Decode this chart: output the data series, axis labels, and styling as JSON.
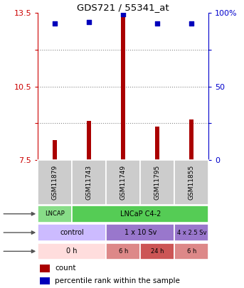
{
  "title": "GDS721 / 55341_at",
  "samples": [
    "GSM11879",
    "GSM11743",
    "GSM11749",
    "GSM11795",
    "GSM11855"
  ],
  "bar_values": [
    8.3,
    9.1,
    13.45,
    8.85,
    9.15
  ],
  "percentile_values": [
    93,
    94,
    99,
    93,
    93
  ],
  "ylim": [
    7.5,
    13.5
  ],
  "yticks_left": [
    7.5,
    9.0,
    10.5,
    12.0,
    13.5
  ],
  "ytick_labels_left": [
    "7.5",
    "",
    "10.5",
    "",
    "13.5"
  ],
  "ytick_labels_left_show": [
    true,
    false,
    true,
    false,
    true
  ],
  "yticks_right": [
    0,
    25,
    50,
    75,
    100
  ],
  "ytick_labels_right_show": [
    true,
    false,
    true,
    false,
    true
  ],
  "percentile_ylim": [
    0,
    100
  ],
  "bar_color": "#aa0000",
  "percentile_color": "#0000bb",
  "cell_line_spans": [
    {
      "label": "LNCAP",
      "start": 0,
      "end": 1,
      "color": "#88dd88"
    },
    {
      "label": "LNCaP C4-2",
      "start": 1,
      "end": 5,
      "color": "#55cc55"
    }
  ],
  "dose_spans": [
    {
      "label": "control",
      "start": 0,
      "end": 2,
      "color": "#ccbbff"
    },
    {
      "label": "1 x 10 Sv",
      "start": 2,
      "end": 4,
      "color": "#9977cc"
    },
    {
      "label": "4 x 2.5 Sv",
      "start": 4,
      "end": 5,
      "color": "#9977cc"
    }
  ],
  "time_spans": [
    {
      "label": "0 h",
      "start": 0,
      "end": 2,
      "color": "#ffdddd"
    },
    {
      "label": "6 h",
      "start": 2,
      "end": 3,
      "color": "#dd8888"
    },
    {
      "label": "24 h",
      "start": 3,
      "end": 4,
      "color": "#cc5555"
    },
    {
      "label": "6 h",
      "start": 4,
      "end": 5,
      "color": "#dd8888"
    }
  ],
  "grid_color": "#888888",
  "left_axis_color": "#cc0000",
  "right_axis_color": "#0000cc",
  "bg_color": "#ffffff",
  "sample_bg_color": "#cccccc"
}
